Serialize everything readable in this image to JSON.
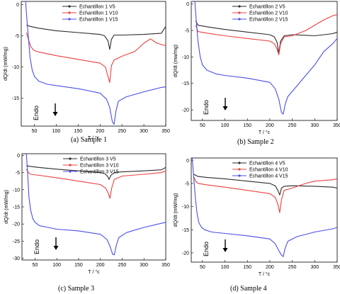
{
  "colors": {
    "V5": "#2b2b2b",
    "V10": "#e8403f",
    "V15": "#4a4fe6"
  },
  "chart_data": [
    {
      "type": "line",
      "caption": "(a)  Sample 1",
      "xlabel": "T / °c",
      "ylabel": "dQ/dt (mW/mg)",
      "xlim": [
        20,
        350
      ],
      "ylim": [
        -19.5,
        0.5
      ],
      "xticks": [
        50,
        100,
        150,
        200,
        250,
        300,
        350
      ],
      "yticks": [
        -15,
        -10,
        -5,
        0
      ],
      "annotation": "Endo",
      "legend_position": "top-center",
      "series": [
        {
          "name": "Echantillon 1 V5",
          "color_key": "V5",
          "x": [
            32,
            40,
            60,
            100,
            150,
            200,
            210,
            218,
            222,
            226,
            232,
            250,
            300,
            340,
            350
          ],
          "y": [
            -3.3,
            -3.5,
            -3.8,
            -4.2,
            -4.5,
            -4.8,
            -5.0,
            -5.8,
            -7.2,
            -5.6,
            -4.9,
            -4.9,
            -4.8,
            -4.6,
            -3.5
          ]
        },
        {
          "name": "Echantillon 1 V10",
          "color_key": "V10",
          "x": [
            32,
            36,
            42,
            50,
            60,
            100,
            150,
            200,
            212,
            218,
            222,
            226,
            232,
            250,
            280,
            300,
            315,
            330,
            350
          ],
          "y": [
            -4.5,
            -5.5,
            -6.8,
            -7.4,
            -7.6,
            -8.2,
            -8.8,
            -9.4,
            -10.0,
            -11.5,
            -12.5,
            -9.8,
            -8.9,
            -8.3,
            -7.5,
            -6.2,
            -5.5,
            -6.2,
            -6.6
          ]
        },
        {
          "name": "Echantillon 1 V15",
          "color_key": "V15",
          "x": [
            30,
            32,
            36,
            40,
            45,
            50,
            60,
            80,
            100,
            150,
            200,
            215,
            222,
            228,
            232,
            236,
            242,
            260,
            300,
            340,
            350
          ],
          "y": [
            0.5,
            -1.5,
            -5.0,
            -8.5,
            -10.5,
            -11.5,
            -12.3,
            -12.8,
            -13.0,
            -13.5,
            -14.2,
            -15.2,
            -16.5,
            -18.8,
            -19.2,
            -17.2,
            -15.5,
            -14.8,
            -14.0,
            -13.3,
            -13.2
          ]
        }
      ]
    },
    {
      "type": "line",
      "caption": "(b) Sample 2",
      "xlabel": "T / °c",
      "ylabel": "dQ/dt (mw/mg)",
      "xlim": [
        25,
        350
      ],
      "ylim": [
        -22,
        0.5
      ],
      "xticks": [
        50,
        100,
        150,
        200,
        250,
        300,
        350
      ],
      "yticks": [
        -20,
        -15,
        -10,
        -5,
        0
      ],
      "annotation": "Endo",
      "legend_position": "top-center",
      "series": [
        {
          "name": "Echantillon 2 V5",
          "color_key": "V5",
          "x": [
            35,
            40,
            60,
            100,
            150,
            200,
            210,
            216,
            220,
            224,
            232,
            250,
            280,
            300,
            340,
            350
          ],
          "y": [
            -3.2,
            -4.0,
            -4.3,
            -4.8,
            -5.3,
            -5.8,
            -6.2,
            -7.2,
            -9.3,
            -7.0,
            -6.0,
            -5.8,
            -5.9,
            -6.0,
            -5.6,
            -5.3
          ]
        },
        {
          "name": "Echantillon 2 V10",
          "color_key": "V10",
          "x": [
            35,
            40,
            60,
            100,
            150,
            200,
            210,
            216,
            220,
            224,
            232,
            250,
            280,
            300,
            320,
            340,
            350
          ],
          "y": [
            -4.0,
            -5.2,
            -5.5,
            -6.0,
            -6.5,
            -7.0,
            -7.5,
            -8.5,
            -9.6,
            -7.5,
            -6.2,
            -6.0,
            -5.0,
            -4.0,
            -3.0,
            -2.2,
            -2.0
          ]
        },
        {
          "name": "Echantillon 2 V15",
          "color_key": "V15",
          "x": [
            33,
            36,
            40,
            45,
            50,
            60,
            80,
            100,
            150,
            200,
            212,
            220,
            226,
            230,
            234,
            240,
            260,
            280,
            300,
            320,
            340,
            350
          ],
          "y": [
            0.5,
            -3.0,
            -7.0,
            -10.0,
            -11.5,
            -12.5,
            -13.2,
            -13.5,
            -14.0,
            -14.8,
            -16.0,
            -18.0,
            -20.5,
            -20.8,
            -19.0,
            -17.5,
            -15.5,
            -13.5,
            -11.5,
            -9.0,
            -7.5,
            -6.5
          ]
        }
      ]
    },
    {
      "type": "line",
      "caption": "(c) Sample 3",
      "xlabel": "T / °c",
      "ylabel": "dQ/dt (mW/mg)",
      "xlim": [
        20,
        350
      ],
      "ylim": [
        -30.5,
        0.5
      ],
      "xticks": [
        50,
        100,
        150,
        200,
        250,
        300,
        350
      ],
      "yticks": [
        -30,
        -25,
        -20,
        -15,
        -10,
        -5,
        0
      ],
      "annotation": "Endo",
      "legend_position": "top-center",
      "series": [
        {
          "name": "Echantillon 3 V5",
          "color_key": "V5",
          "x": [
            30,
            40,
            60,
            100,
            150,
            200,
            210,
            216,
            220,
            224,
            232,
            250,
            300,
            340,
            350
          ],
          "y": [
            -3.0,
            -3.2,
            -3.5,
            -4.0,
            -4.5,
            -5.0,
            -5.3,
            -6.0,
            -7.0,
            -5.8,
            -5.0,
            -4.8,
            -4.5,
            -4.2,
            -3.5
          ]
        },
        {
          "name": "Echantillon 3 V10",
          "color_key": "V10",
          "x": [
            30,
            35,
            40,
            60,
            100,
            150,
            200,
            212,
            218,
            222,
            226,
            232,
            250,
            300,
            340,
            350
          ],
          "y": [
            -4.0,
            -5.0,
            -5.5,
            -5.8,
            -6.5,
            -7.5,
            -8.5,
            -9.5,
            -11.0,
            -12.5,
            -9.5,
            -7.0,
            -6.0,
            -5.5,
            -5.0,
            -4.5
          ]
        },
        {
          "name": "Echantillon 3 V15",
          "color_key": "V15",
          "x": [
            30,
            33,
            36,
            40,
            45,
            50,
            60,
            80,
            100,
            150,
            200,
            215,
            222,
            228,
            232,
            236,
            242,
            260,
            300,
            340,
            350
          ],
          "y": [
            0.5,
            -5.0,
            -12.0,
            -16.0,
            -18.5,
            -19.5,
            -20.5,
            -21.0,
            -21.5,
            -22.0,
            -23.0,
            -24.5,
            -26.5,
            -28.8,
            -29.0,
            -26.5,
            -24.0,
            -22.5,
            -21.0,
            -19.8,
            -19.5
          ]
        }
      ]
    },
    {
      "type": "line",
      "caption": "(d) Sample 4",
      "xlabel": "T / °c",
      "ylabel": "dQ/dt (mW/mg)",
      "xlim": [
        25,
        350
      ],
      "ylim": [
        -22,
        0.5
      ],
      "xticks": [
        50,
        100,
        150,
        200,
        250,
        300,
        350
      ],
      "yticks": [
        -20,
        -15,
        -10,
        -5,
        0
      ],
      "annotation": "Endo",
      "legend_position": "top-center",
      "series": [
        {
          "name": "Echantillon 4 V5",
          "color_key": "V5",
          "x": [
            30,
            40,
            60,
            100,
            150,
            200,
            212,
            218,
            222,
            226,
            232,
            250,
            300,
            340,
            350
          ],
          "y": [
            -3.0,
            -3.5,
            -3.7,
            -4.0,
            -4.5,
            -5.0,
            -5.5,
            -6.5,
            -7.5,
            -6.0,
            -5.6,
            -5.5,
            -5.6,
            -5.8,
            -6.0
          ]
        },
        {
          "name": "Echantillon 4 V10",
          "color_key": "V10",
          "x": [
            30,
            35,
            40,
            60,
            100,
            150,
            200,
            212,
            218,
            222,
            226,
            232,
            250,
            280,
            300,
            340,
            350
          ],
          "y": [
            -3.5,
            -4.5,
            -5.0,
            -5.3,
            -5.8,
            -6.5,
            -7.2,
            -8.0,
            -9.5,
            -11.3,
            -8.5,
            -6.5,
            -6.0,
            -5.0,
            -4.5,
            -4.2,
            -4.0
          ]
        },
        {
          "name": "Echantillon 4 V15",
          "color_key": "V15",
          "x": [
            27,
            30,
            34,
            38,
            42,
            48,
            55,
            70,
            100,
            150,
            200,
            212,
            220,
            226,
            230,
            234,
            240,
            260,
            300,
            340,
            350
          ],
          "y": [
            0.5,
            -3.0,
            -8.0,
            -11.5,
            -13.5,
            -14.5,
            -15.0,
            -15.5,
            -15.8,
            -16.3,
            -17.0,
            -18.0,
            -19.5,
            -20.5,
            -20.8,
            -19.0,
            -17.5,
            -16.5,
            -15.5,
            -14.8,
            -14.5
          ]
        }
      ]
    }
  ]
}
